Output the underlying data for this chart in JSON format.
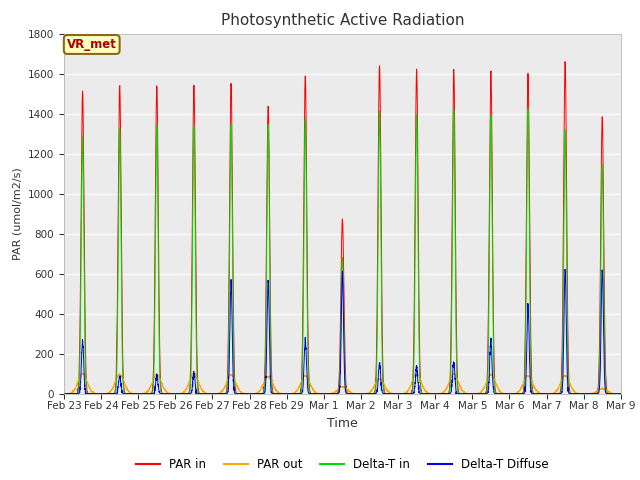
{
  "title": "Photosynthetic Active Radiation",
  "ylabel": "PAR (umol/m2/s)",
  "xlabel": "Time",
  "annotation_text": "VR_met",
  "fig_bg_color": "#ffffff",
  "plot_bg_color": "#ebebeb",
  "line_colors": {
    "par_in": "#ff0000",
    "par_out": "#ffa500",
    "delta_t_in": "#00dd00",
    "delta_t_diffuse": "#0000ee"
  },
  "legend_entries": [
    "PAR in",
    "PAR out",
    "Delta-T in",
    "Delta-T Diffuse"
  ],
  "ylim": [
    0,
    1800
  ],
  "yticks": [
    0,
    200,
    400,
    600,
    800,
    1000,
    1200,
    1400,
    1600,
    1800
  ],
  "num_days": 15,
  "days_labels": [
    "Feb 23",
    "Feb 24",
    "Feb 25",
    "Feb 26",
    "Feb 27",
    "Feb 28",
    "Feb 29",
    "Mar 1",
    "Mar 2",
    "Mar 3",
    "Mar 4",
    "Mar 5",
    "Mar 6",
    "Mar 7",
    "Mar 8",
    "Mar 9"
  ],
  "par_in_peaks": [
    1510,
    1540,
    1535,
    1540,
    1550,
    1440,
    1590,
    870,
    1640,
    1615,
    1625,
    1610,
    1600,
    1655,
    1380
  ],
  "par_out_peaks": [
    100,
    95,
    95,
    100,
    95,
    85,
    90,
    35,
    75,
    100,
    100,
    95,
    90,
    90,
    25
  ],
  "delta_t_in_peaks": [
    1290,
    1330,
    1335,
    1335,
    1340,
    1340,
    1370,
    680,
    1410,
    1400,
    1420,
    1390,
    1420,
    1320,
    1140
  ],
  "delta_t_diffuse_peaks": [
    260,
    90,
    90,
    100,
    560,
    570,
    270,
    600,
    150,
    130,
    155,
    270,
    445,
    620,
    620
  ],
  "pts_per_day": 288
}
